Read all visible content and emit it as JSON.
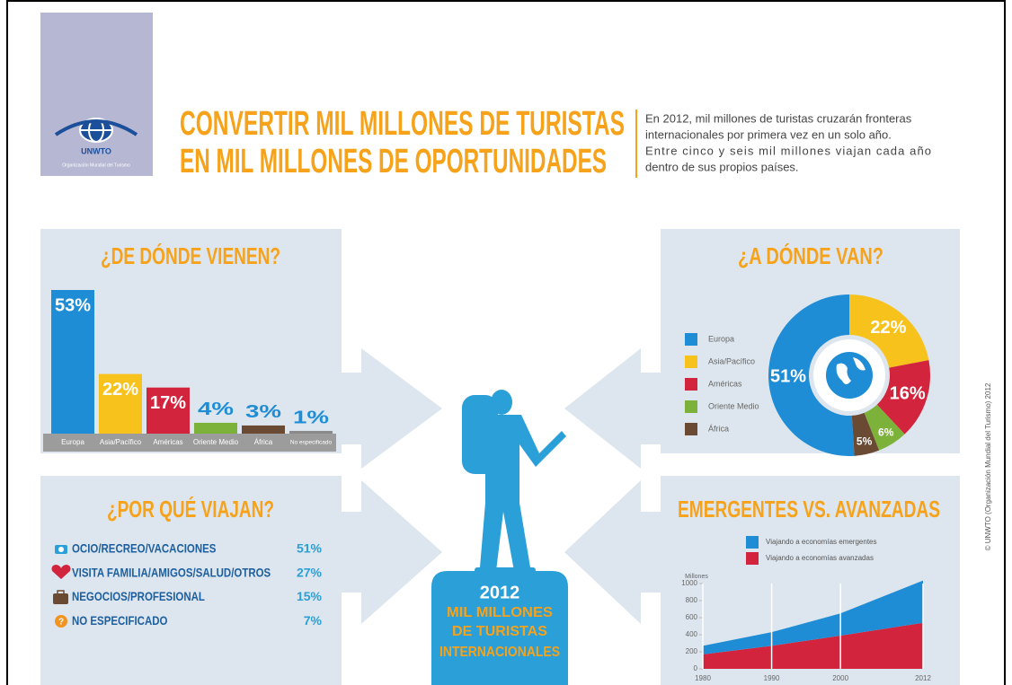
{
  "logo": {
    "name": "UNWTO",
    "subtitle": "Organización Mundial del Turismo"
  },
  "title_lines": [
    "CONVERTIR MIL MILLONES DE TURISTAS",
    "EN MIL MILLONES DE OPORTUNIDADES"
  ],
  "intro_lines": [
    "En 2012, mil millones de turistas cruzarán fronteras",
    "internacionales por primera vez en un solo año.",
    "Entre cinco y seis mil millones viajan cada año",
    "dentro de sus propios países."
  ],
  "chart_data": [
    {
      "type": "bar",
      "title": "¿DE DÓNDE VIENEN?",
      "categories": [
        "Europa",
        "Asia/Pacífico",
        "Américas",
        "Oriente Medio",
        "África",
        "No especificado"
      ],
      "values": [
        53,
        22,
        17,
        4,
        3,
        1
      ],
      "value_labels": [
        "53%",
        "22%",
        "17%",
        "4%",
        "3%",
        "1%"
      ],
      "colors": [
        "#1f8dd6",
        "#f8c21c",
        "#d3243e",
        "#7db23a",
        "#6b4a33",
        "#8a8a8a"
      ]
    },
    {
      "type": "pie",
      "title": "¿A DÓNDE VAN?",
      "categories": [
        "Europa",
        "Asia/Pacífico",
        "Américas",
        "Oriente Medio",
        "África"
      ],
      "values": [
        51,
        22,
        16,
        6,
        5
      ],
      "value_labels": [
        "51%",
        "22%",
        "16%",
        "6%",
        "5%"
      ],
      "colors": [
        "#1f8dd6",
        "#f8c21c",
        "#d3243e",
        "#7db23a",
        "#6b4a33"
      ]
    },
    {
      "type": "area",
      "title": "EMERGENTES VS. AVANZADAS",
      "y_label": "Millones",
      "x": [
        1980,
        1990,
        2000,
        2012
      ],
      "series": [
        {
          "name": "Viajando a economías emergentes",
          "color": "#1f8dd6",
          "values": [
            100,
            160,
            260,
            495
          ]
        },
        {
          "name": "Viajando a economías avanzadas",
          "color": "#d3243e",
          "values": [
            170,
            270,
            390,
            540
          ]
        }
      ],
      "stacked": true,
      "xlim": [
        1980,
        2012
      ],
      "xticks": [
        1980,
        1990,
        2000,
        2012
      ],
      "ylim": [
        0,
        1000
      ],
      "yticks": [
        0,
        200,
        400,
        600,
        800,
        1000
      ]
    }
  ],
  "reasons": {
    "title": "¿POR QUÉ VIAJAN?",
    "items": [
      {
        "label": "OCIO/RECREO/VACACIONES",
        "share": "51%"
      },
      {
        "label": "VISITA FAMILIA/AMIGOS/SALUD/OTROS",
        "share": "27%"
      },
      {
        "label": "NEGOCIOS/PROFESIONAL",
        "share": "15%"
      },
      {
        "label": "NO ESPECIFICADO",
        "share": "7%"
      }
    ]
  },
  "center": {
    "year": "2012",
    "lines": [
      "MIL MILLONES",
      "DE TURISTAS",
      "INTERNACIONALES"
    ]
  },
  "copyright": "© UNWTO (Organización Mundial del Turismo) 2012"
}
